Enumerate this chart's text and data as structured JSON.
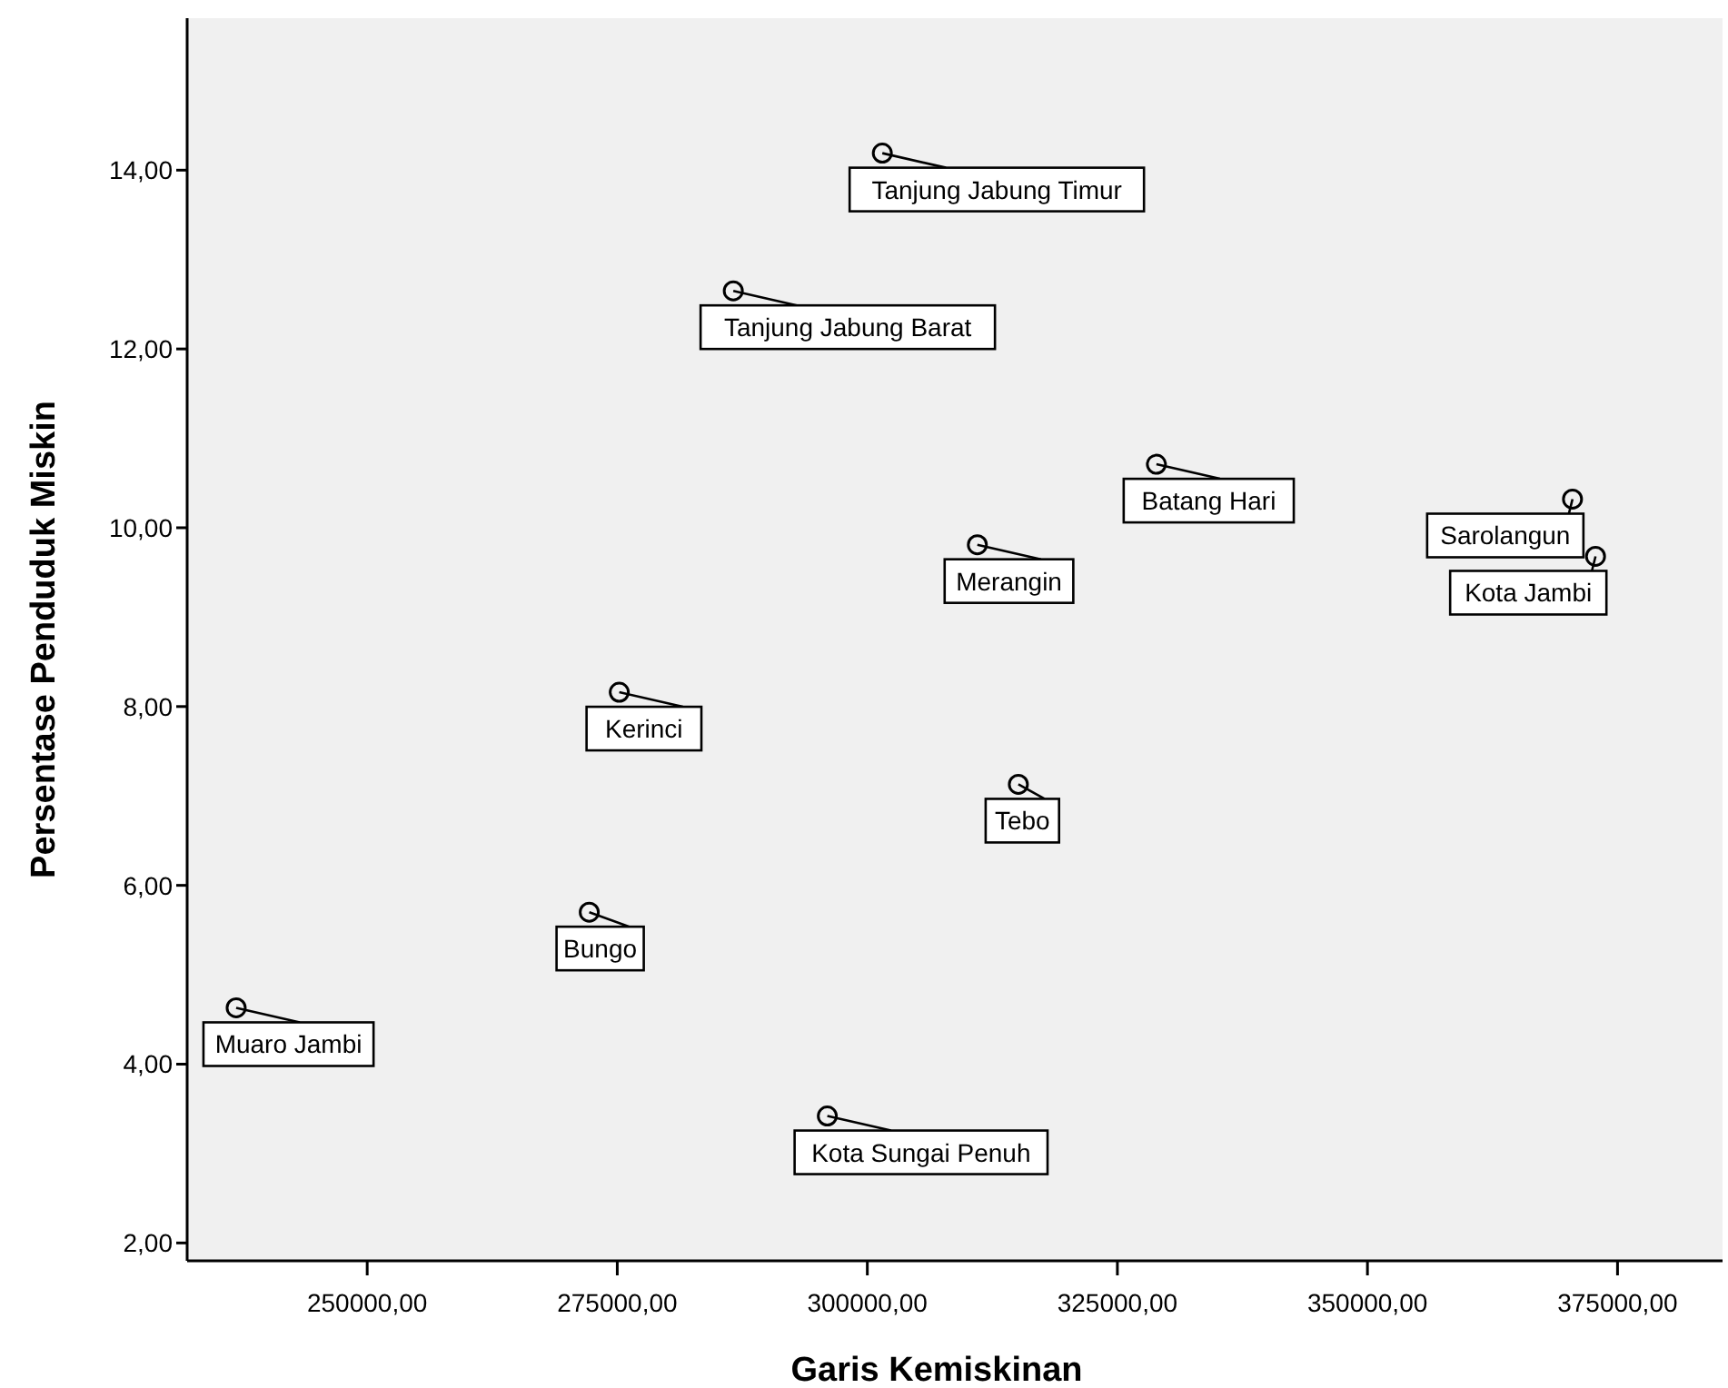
{
  "chart_data": {
    "type": "scatter",
    "xlabel": "Garis Kemiskinan",
    "ylabel": "Persentase Penduduk Miskin",
    "x": [
      301500,
      286600,
      311000,
      275200,
      315100,
      272200,
      236900,
      296000,
      328900,
      370500,
      372800
    ],
    "values": [
      14.19,
      12.65,
      9.81,
      8.16,
      7.13,
      5.7,
      4.63,
      3.42,
      10.71,
      10.32,
      9.68
    ],
    "color": "#000000",
    "marker": "circle",
    "grid": false,
    "xlim": [
      232000,
      385500
    ],
    "ylim": [
      1.8,
      15.7
    ],
    "xticks": [
      {
        "value": 250000,
        "label": "250000,00"
      },
      {
        "value": 275000,
        "label": "275000,00"
      },
      {
        "value": 300000,
        "label": "300000,00"
      },
      {
        "value": 325000,
        "label": "325000,00"
      },
      {
        "value": 350000,
        "label": "350000,00"
      },
      {
        "value": 375000,
        "label": "375000,00"
      }
    ],
    "yticks": [
      {
        "value": 2,
        "label": "2,00"
      },
      {
        "value": 4,
        "label": "4,00"
      },
      {
        "value": 6,
        "label": "6,00"
      },
      {
        "value": 8,
        "label": "8,00"
      },
      {
        "value": 10,
        "label": "10,00"
      },
      {
        "value": 12,
        "label": "12,00"
      },
      {
        "value": 14,
        "label": "14,00"
      }
    ],
    "annotations": [
      {
        "text": "Tanjung Jabung Timur",
        "x": 301500,
        "y": 14.19
      },
      {
        "text": "Tanjung Jabung Barat",
        "x": 286600,
        "y": 12.65
      },
      {
        "text": "Merangin",
        "x": 311000,
        "y": 9.81
      },
      {
        "text": "Kerinci",
        "x": 275200,
        "y": 8.16
      },
      {
        "text": "Tebo",
        "x": 315100,
        "y": 7.13
      },
      {
        "text": "Bungo",
        "x": 272200,
        "y": 5.7
      },
      {
        "text": "Muaro Jambi",
        "x": 236900,
        "y": 4.63
      },
      {
        "text": "Kota Sungai Penuh",
        "x": 296000,
        "y": 3.42
      },
      {
        "text": "Batang Hari",
        "x": 328900,
        "y": 10.71
      },
      {
        "text": "Sarolangun",
        "x": 370500,
        "y": 10.32
      },
      {
        "text": "Kota Jambi",
        "x": 372800,
        "y": 9.68
      }
    ]
  }
}
